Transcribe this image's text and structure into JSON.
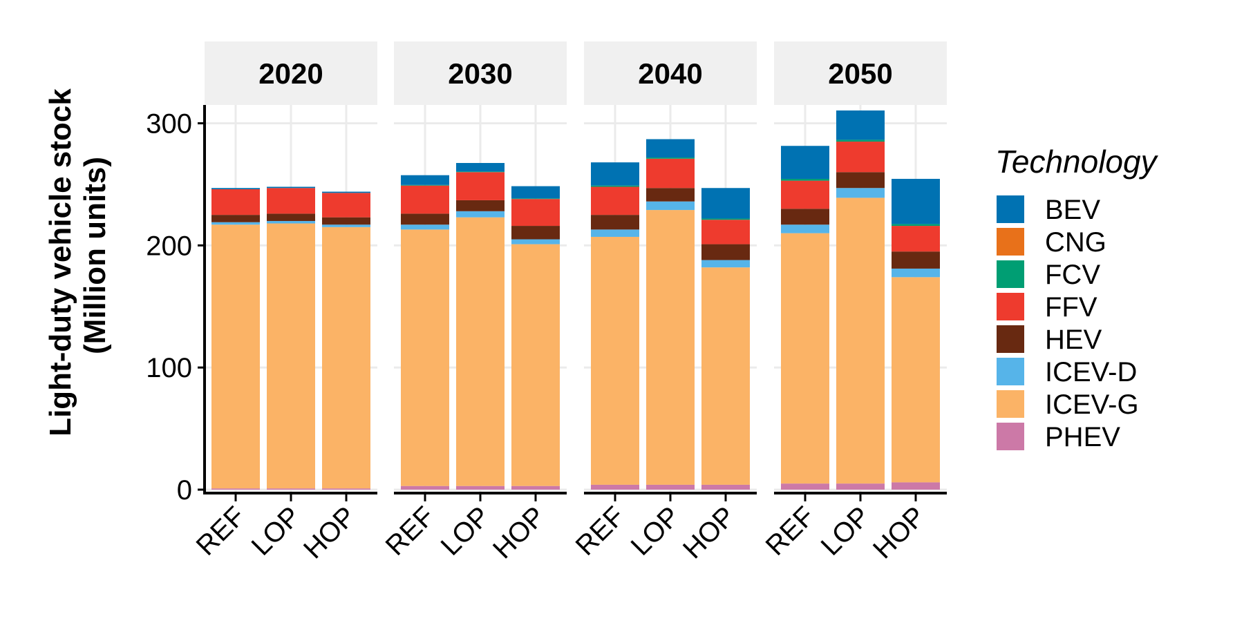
{
  "chart_data": {
    "type": "bar",
    "stacked": true,
    "facet_variable": "year",
    "facets": [
      "2020",
      "2030",
      "2040",
      "2050"
    ],
    "categories": [
      "REF",
      "LOP",
      "HOP"
    ],
    "ylabel_line1": "Light-duty vehicle stock",
    "ylabel_line2": "(Million units)",
    "ylim": [
      0,
      315
    ],
    "yticks": [
      0,
      100,
      200,
      300
    ],
    "grid": true,
    "legend_title": "Technology",
    "legend_position": "right",
    "stack_order": [
      "PHEV",
      "ICEV-G",
      "ICEV-D",
      "HEV",
      "FFV",
      "FCV",
      "CNG",
      "BEV"
    ],
    "series": [
      {
        "name": "BEV",
        "color": "#0072B2",
        "values": {
          "2020": [
            1,
            1,
            1
          ],
          "2030": [
            8,
            7,
            10
          ],
          "2040": [
            19,
            15,
            25
          ],
          "2050": [
            27,
            24,
            37
          ]
        }
      },
      {
        "name": "CNG",
        "color": "#E8711A",
        "values": {
          "2020": [
            0,
            0,
            0
          ],
          "2030": [
            0,
            0,
            0
          ],
          "2040": [
            0,
            0,
            0
          ],
          "2050": [
            0,
            0,
            0
          ]
        }
      },
      {
        "name": "FCV",
        "color": "#009E73",
        "values": {
          "2020": [
            0,
            0,
            0
          ],
          "2030": [
            0.5,
            0.5,
            0.5
          ],
          "2040": [
            1,
            1,
            1
          ],
          "2050": [
            1.5,
            1.5,
            1.5
          ]
        }
      },
      {
        "name": "FFV",
        "color": "#EE3B2E",
        "values": {
          "2020": [
            21,
            21,
            20
          ],
          "2030": [
            23,
            23,
            22
          ],
          "2040": [
            23,
            24,
            20
          ],
          "2050": [
            23,
            25,
            21
          ]
        }
      },
      {
        "name": "HEV",
        "color": "#682911",
        "values": {
          "2020": [
            6,
            6,
            6
          ],
          "2030": [
            9,
            9,
            11
          ],
          "2040": [
            12,
            11,
            13
          ],
          "2050": [
            13,
            13,
            14
          ]
        }
      },
      {
        "name": "ICEV-D",
        "color": "#56B4E9",
        "values": {
          "2020": [
            2,
            2,
            2
          ],
          "2030": [
            4,
            5,
            4
          ],
          "2040": [
            6,
            7,
            6
          ],
          "2050": [
            7,
            8,
            7
          ]
        }
      },
      {
        "name": "ICEV-G",
        "color": "#FBB366",
        "values": {
          "2020": [
            216,
            217,
            214
          ],
          "2030": [
            210,
            220,
            198
          ],
          "2040": [
            203,
            225,
            178
          ],
          "2050": [
            205,
            234,
            168
          ]
        }
      },
      {
        "name": "PHEV",
        "color": "#CC79A7",
        "values": {
          "2020": [
            1,
            1,
            1
          ],
          "2030": [
            3,
            3,
            3
          ],
          "2040": [
            4,
            4,
            4
          ],
          "2050": [
            5,
            5,
            6
          ]
        }
      }
    ]
  }
}
